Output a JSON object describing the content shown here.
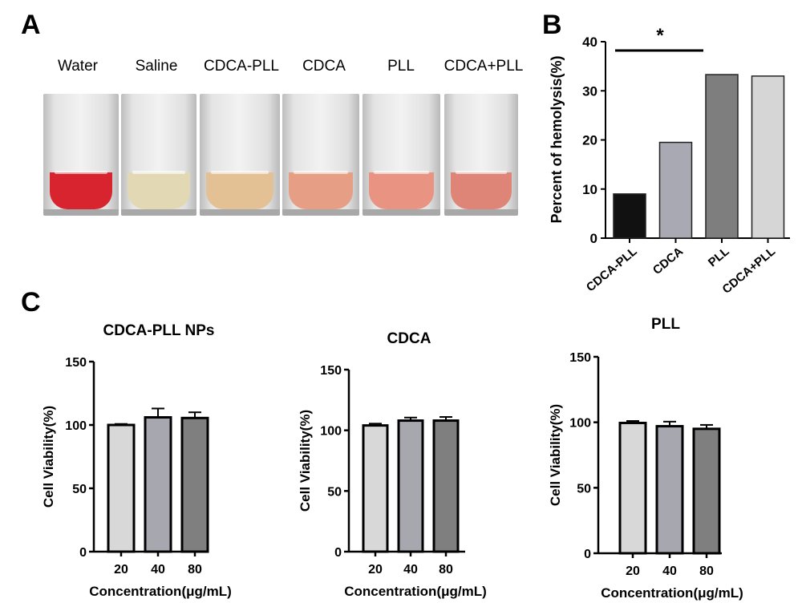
{
  "panels": {
    "a": "A",
    "b": "B",
    "c": "C"
  },
  "tubes": [
    {
      "label": "Water",
      "color": "#d8242e"
    },
    {
      "label": "Saline",
      "color": "#e2d9b4"
    },
    {
      "label": "CDCA-PLL",
      "color": "#e4c195"
    },
    {
      "label": "CDCA",
      "color": "#e69f85"
    },
    {
      "label": "PLL",
      "color": "#e99383"
    },
    {
      "label": "CDCA+PLL",
      "color": "#df8577"
    }
  ],
  "chart_data": [
    {
      "type": "bar",
      "panel": "B",
      "categories": [
        "CDCA-PLL",
        "CDCA",
        "PLL",
        "CDCA+PLL"
      ],
      "values": [
        9,
        19.5,
        33.3,
        33
      ],
      "colors": [
        "#111111",
        "#a9a9b4",
        "#7e7e7e",
        "#d6d6d6"
      ],
      "title": "",
      "xlabel": "",
      "ylabel": "Percent of hemolysis(%)",
      "ylim": [
        0,
        40
      ],
      "yticks": [
        "0",
        "10",
        "20",
        "30",
        "40"
      ],
      "annotation": "*",
      "grid": false
    },
    {
      "type": "bar",
      "panel": "C",
      "title": "CDCA-PLL NPs",
      "categories": [
        "20",
        "40",
        "80"
      ],
      "values": [
        100,
        106,
        105.5
      ],
      "errors": [
        0.8,
        7,
        4.5
      ],
      "colors": [
        "#d8d8d8",
        "#a7a7b0",
        "#7f7f7f"
      ],
      "xlabel": "Concentration(μg/mL)",
      "ylabel": "Cell Viability(%)",
      "ylim": [
        0,
        150
      ],
      "yticks": [
        "0",
        "50",
        "100",
        "150"
      ],
      "grid": false
    },
    {
      "type": "bar",
      "panel": "C",
      "title": "CDCA",
      "categories": [
        "20",
        "40",
        "80"
      ],
      "values": [
        104,
        108,
        108
      ],
      "errors": [
        1.5,
        2.5,
        3
      ],
      "colors": [
        "#d8d8d8",
        "#a7a7b0",
        "#7f7f7f"
      ],
      "xlabel": "Concentration(μg/mL)",
      "ylabel": "Cell Viability(%)",
      "ylim": [
        0,
        150
      ],
      "yticks": [
        "0",
        "50",
        "100",
        "150"
      ],
      "grid": false
    },
    {
      "type": "bar",
      "panel": "C",
      "title": "PLL",
      "categories": [
        "20",
        "40",
        "80"
      ],
      "values": [
        99.5,
        97,
        95
      ],
      "errors": [
        1.5,
        3.5,
        3
      ],
      "colors": [
        "#d8d8d8",
        "#a7a7b0",
        "#7f7f7f"
      ],
      "xlabel": "Concentration(μg/mL)",
      "ylabel": "Cell Viability(%)",
      "ylim": [
        0,
        150
      ],
      "yticks": [
        "0",
        "50",
        "100",
        "150"
      ],
      "grid": false
    }
  ]
}
